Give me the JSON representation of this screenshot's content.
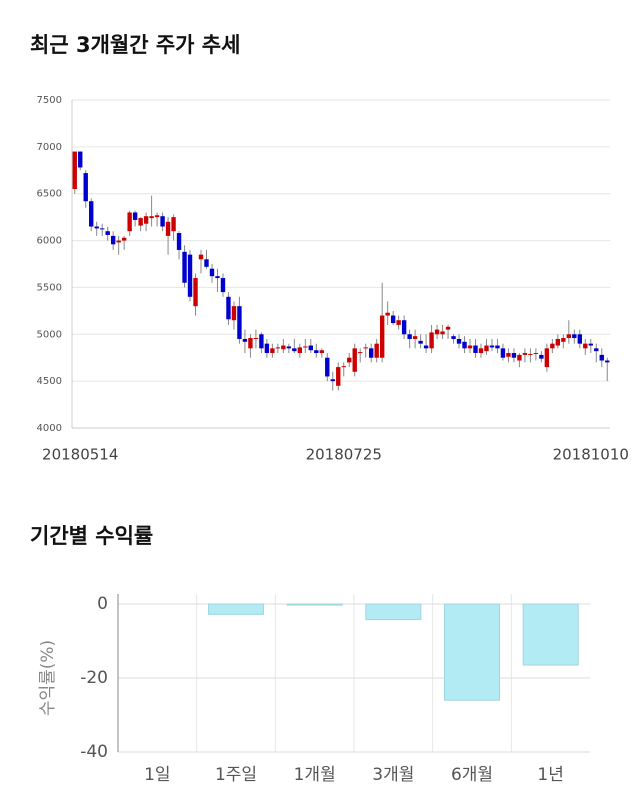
{
  "chart_data": [
    {
      "type": "candlestick",
      "title": "최근 3개월간 주가 추세",
      "categories": [
        null,
        "20180514",
        null,
        null,
        null,
        null,
        null,
        null,
        null,
        null,
        null,
        null,
        null,
        null,
        null,
        null,
        null,
        null,
        null,
        null,
        null,
        null,
        null,
        null,
        null,
        null,
        null,
        null,
        null,
        null,
        null,
        null,
        null,
        null,
        null,
        null,
        null,
        null,
        null,
        null,
        null,
        null,
        null,
        null,
        null,
        null,
        null,
        null,
        null,
        "20180725",
        null,
        null,
        null,
        null,
        null,
        null,
        null,
        null,
        null,
        null,
        null,
        null,
        null,
        null,
        null,
        null,
        null,
        null,
        null,
        null,
        null,
        null,
        null,
        null,
        null,
        null,
        null,
        null,
        null,
        null,
        null,
        null,
        null,
        null,
        null,
        null,
        null,
        null,
        null,
        null,
        null,
        null,
        null,
        null,
        "20181010",
        null,
        null,
        null
      ],
      "open": [
        6550,
        6950,
        6720,
        6420,
        6150,
        6130,
        6100,
        6050,
        5980,
        6000,
        6100,
        6300,
        6160,
        6180,
        6240,
        6250,
        6260,
        6050,
        6100,
        6080,
        5880,
        5850,
        5300,
        5800,
        5800,
        5700,
        5620,
        5600,
        5400,
        5150,
        5300,
        4950,
        4850,
        4950,
        5000,
        4900,
        4800,
        4850,
        4840,
        4870,
        4850,
        4800,
        4860,
        4880,
        4830,
        4800,
        4750,
        4520,
        4450,
        4650,
        4700,
        4600,
        4800,
        4850,
        4850,
        4750,
        4750,
        5200,
        5200,
        5100,
        5150,
        5000,
        4950,
        4930,
        4880,
        4850,
        5000,
        5000,
        5050,
        4980,
        4950,
        4920,
        4850,
        4880,
        4800,
        4820,
        4880,
        4880,
        4850,
        4760,
        4800,
        4720,
        4780,
        4780,
        4790,
        4780,
        4650,
        4850,
        4880,
        4920,
        4960,
        5000,
        5000,
        4850,
        4900,
        4850,
        4780,
        4720
      ],
      "high": [
        6950,
        6950,
        6750,
        6450,
        6200,
        6180,
        6150,
        6100,
        6050,
        6050,
        6320,
        6320,
        6250,
        6300,
        6480,
        6300,
        6300,
        6250,
        6280,
        6100,
        5950,
        5900,
        5650,
        5900,
        5900,
        5750,
        5700,
        5650,
        5450,
        5350,
        5400,
        5050,
        5000,
        5050,
        5020,
        4950,
        4900,
        4900,
        4950,
        4900,
        4950,
        4900,
        4950,
        4950,
        4900,
        4850,
        4800,
        4600,
        4700,
        4700,
        4800,
        4900,
        4850,
        4900,
        4900,
        4950,
        5550,
        5350,
        5250,
        5200,
        5200,
        5050,
        5050,
        5000,
        5000,
        5100,
        5100,
        5100,
        5100,
        5000,
        5000,
        4980,
        4950,
        4950,
        4900,
        4950,
        4950,
        4950,
        4900,
        4850,
        4850,
        4800,
        4850,
        4850,
        4850,
        4820,
        4900,
        4950,
        5000,
        5000,
        5150,
        5050,
        5050,
        4950,
        4950,
        4900,
        4850,
        4750
      ],
      "low": [
        6500,
        6750,
        6350,
        6100,
        6050,
        6050,
        6000,
        5900,
        5850,
        5900,
        6050,
        6150,
        6100,
        6100,
        6150,
        6150,
        6100,
        5850,
        6000,
        5800,
        5500,
        5350,
        5200,
        5650,
        5700,
        5550,
        5450,
        5400,
        5100,
        5050,
        4900,
        4800,
        4750,
        4850,
        4800,
        4750,
        4750,
        4800,
        4800,
        4800,
        4800,
        4750,
        4800,
        4800,
        4750,
        4750,
        4500,
        4400,
        4400,
        4550,
        4650,
        4550,
        4700,
        4750,
        4700,
        4700,
        4700,
        5100,
        5100,
        5050,
        4950,
        4850,
        4850,
        4850,
        4800,
        4800,
        4950,
        4950,
        4950,
        4900,
        4850,
        4800,
        4800,
        4750,
        4750,
        4780,
        4820,
        4800,
        4720,
        4700,
        4700,
        4650,
        4700,
        4700,
        4720,
        4700,
        4600,
        4800,
        4850,
        4850,
        4900,
        4900,
        4850,
        4780,
        4800,
        4700,
        4650,
        4500
      ],
      "close": [
        6950,
        6780,
        6420,
        6150,
        6130,
        6120,
        6060,
        5960,
        6000,
        6030,
        6300,
        6220,
        6240,
        6260,
        6260,
        6270,
        6150,
        6200,
        6250,
        5900,
        5550,
        5400,
        5600,
        5850,
        5720,
        5620,
        5600,
        5450,
        5160,
        5300,
        4950,
        4920,
        4960,
        4960,
        4850,
        4800,
        4850,
        4860,
        4880,
        4850,
        4820,
        4860,
        4870,
        4830,
        4800,
        4830,
        4550,
        4500,
        4650,
        4660,
        4750,
        4850,
        4810,
        4860,
        4750,
        4900,
        5200,
        5230,
        5120,
        5150,
        5000,
        4950,
        4980,
        4900,
        4850,
        5020,
        5050,
        5030,
        5080,
        4950,
        4900,
        4850,
        4880,
        4800,
        4850,
        4880,
        4860,
        4850,
        4750,
        4800,
        4750,
        4780,
        4800,
        4790,
        4800,
        4740,
        4850,
        4900,
        4950,
        4960,
        5000,
        4960,
        4900,
        4900,
        4880,
        4820,
        4720,
        4700
      ],
      "up_color": "#cc0000",
      "down_color": "#0000cc",
      "ylim": [
        4000,
        7500
      ],
      "yticks": [
        4000,
        4500,
        5000,
        5500,
        6000,
        6500,
        7000,
        7500
      ],
      "grid": true
    },
    {
      "type": "bar",
      "title": "기간별 수익률",
      "y_label": "수익률(%)",
      "categories": [
        "1일",
        "1주일",
        "1개월",
        "3개월",
        "6개월",
        "1년"
      ],
      "values": [
        0,
        -2.8,
        -0.3,
        -4.2,
        -26,
        -16.5
      ],
      "color": "#b3ebf5",
      "ylim": [
        -40,
        0
      ],
      "yticks": [
        0,
        -20,
        -40
      ],
      "grid": true
    }
  ]
}
